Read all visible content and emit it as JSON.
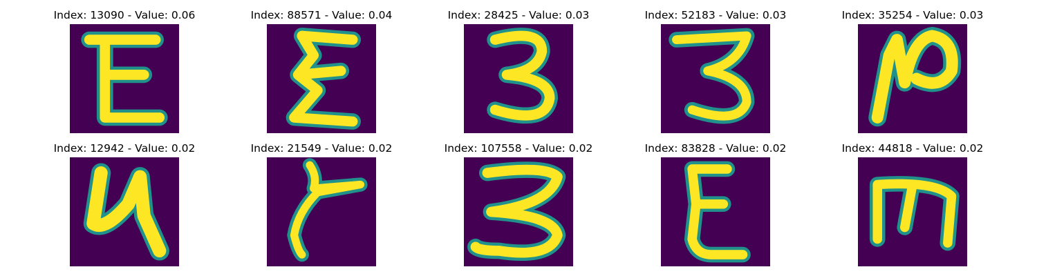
{
  "colors": {
    "background": "#440154",
    "edge": "#21918c",
    "stroke": "#fde725"
  },
  "panels": [
    {
      "title": "Index: 13090 - Value: 0.06",
      "glyph": "E-shaped handwritten character"
    },
    {
      "title": "Index: 88571 - Value: 0.04",
      "glyph": "Sigma-like handwritten character"
    },
    {
      "title": "Index: 28425 - Value: 0.03",
      "glyph": "handwritten 3"
    },
    {
      "title": "Index: 52183 - Value: 0.03",
      "glyph": "handwritten 3"
    },
    {
      "title": "Index: 35254 - Value: 0.03",
      "glyph": "N-like handwritten character"
    },
    {
      "title": "Index: 12942 - Value: 0.02",
      "glyph": "handwritten 4-like character"
    },
    {
      "title": "Index: 21549 - Value: 0.02",
      "glyph": "hooked handwritten stroke"
    },
    {
      "title": "Index: 107558 - Value: 0.02",
      "glyph": "handwritten 3"
    },
    {
      "title": "Index: 83828 - Value: 0.02",
      "glyph": "E-shaped handwritten character"
    },
    {
      "title": "Index: 44818 - Value: 0.02",
      "glyph": "m-like handwritten character"
    }
  ]
}
